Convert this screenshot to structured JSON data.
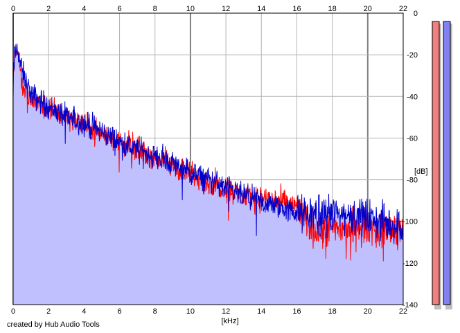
{
  "footer": {
    "credit": "created by Hub Audio Tools"
  },
  "chart_data": {
    "type": "line",
    "xlabel": "[kHz]",
    "ylabel": "[dB]",
    "xlim": [
      0,
      22
    ],
    "ylim": [
      -140,
      0
    ],
    "x_ticks": [
      0,
      2,
      4,
      6,
      8,
      10,
      12,
      14,
      16,
      18,
      20,
      22
    ],
    "x_tick_labels": [
      "0",
      "2",
      "4",
      "6",
      "8",
      "10",
      "12",
      "14",
      "16",
      "18",
      "20",
      "22"
    ],
    "y_ticks": [
      0,
      -20,
      -40,
      -60,
      -80,
      -100,
      -120,
      -140
    ],
    "y_tick_labels": [
      "0",
      "-20",
      "-40",
      "-60",
      "-80",
      "-100",
      "-120",
      "-140"
    ],
    "grid": true,
    "x_tick_labels_position": "top and bottom",
    "y_tick_labels_position": "right",
    "colors": {
      "left_channel": "#ff0000",
      "right_channel": "#0000cc",
      "fill": "#c0c0ff",
      "grid": "#b4b4b4",
      "level_left": "#f08080",
      "level_right": "#8080f0"
    },
    "series": [
      {
        "color": "#0000cc",
        "x": [
          0,
          0.1,
          0.25,
          0.5,
          1,
          1.5,
          2,
          3,
          4,
          5,
          6,
          7,
          8,
          9,
          10,
          11,
          12,
          13,
          14,
          15,
          16,
          16.5,
          17,
          18,
          19,
          20,
          21,
          22
        ],
        "y": [
          -30,
          -20,
          -17,
          -28,
          -39,
          -42,
          -45,
          -50,
          -53,
          -57,
          -62,
          -66,
          -69,
          -72,
          -77,
          -80,
          -84,
          -88,
          -91,
          -93,
          -96,
          -97,
          -96,
          -96,
          -97,
          -98,
          -101,
          -103
        ]
      },
      {
        "color": "#ff0000",
        "x": [
          0,
          0.1,
          0.25,
          0.5,
          1,
          1.5,
          2,
          3,
          4,
          5,
          6,
          7,
          8,
          9,
          10,
          11,
          12,
          13,
          14,
          15,
          16,
          16.5,
          17,
          18,
          19,
          20,
          21,
          22
        ],
        "y": [
          -30,
          -19,
          -17,
          -35,
          -42,
          -44,
          -46,
          -49,
          -54,
          -58,
          -62,
          -65,
          -69,
          -73,
          -77,
          -81,
          -84,
          -88,
          -89,
          -90,
          -93,
          -100,
          -104,
          -104,
          -103,
          -102,
          -103,
          -104
        ]
      }
    ],
    "level_meters": [
      {
        "channel": "left",
        "color": "#f08080"
      },
      {
        "channel": "right",
        "color": "#8080f0"
      }
    ]
  }
}
